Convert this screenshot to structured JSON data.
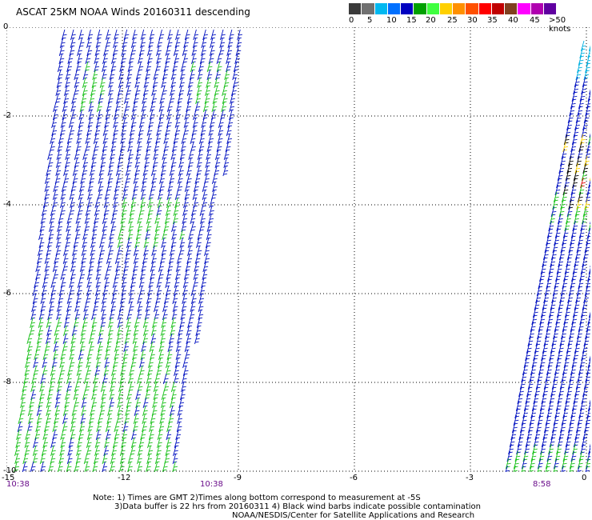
{
  "title": "ASCAT 25KM NOAA Winds 20160311 descending",
  "legend": {
    "labels": [
      "0",
      "5",
      "10",
      "15",
      "20",
      "25",
      "30",
      "35",
      "40",
      "45",
      ">50 knots"
    ],
    "colors": [
      "#3a3a3a",
      "#707070",
      "#00b8f0",
      "#0070ff",
      "#0000c0",
      "#00a000",
      "#40ff40",
      "#ffd000",
      "#ff9000",
      "#ff5000",
      "#ff0000",
      "#c00000",
      "#804020",
      "#ff00ff",
      "#b000b0",
      "#6000a0"
    ]
  },
  "axes": {
    "y_labels": [
      "0",
      "-2",
      "-4",
      "-6",
      "-8",
      "-10"
    ],
    "x_labels": [
      "-15",
      "-12",
      "-9",
      "-6",
      "-3",
      "0"
    ]
  },
  "time_labels": {
    "left": "10:38",
    "middle": "10:38",
    "right": "8:58"
  },
  "notes": {
    "line1": "Note: 1) Times are GMT 2)Times along bottom correspond to measurement at -5S",
    "line2": "3)Data buffer is 22 hrs from 20160311 4) Black wind barbs indicate possible contamination",
    "line3": "NOAA/NESDIS/Center for Satellite Applications and Research"
  },
  "colors": {
    "barb_blue": "#0010c0",
    "barb_green": "#18c018",
    "barb_cyan": "#00b0e0",
    "barb_yellow": "#ffd000",
    "barb_red": "#e00000",
    "barb_black": "#000000",
    "grid": "#000000",
    "time_label": "#6a0d8a"
  }
}
